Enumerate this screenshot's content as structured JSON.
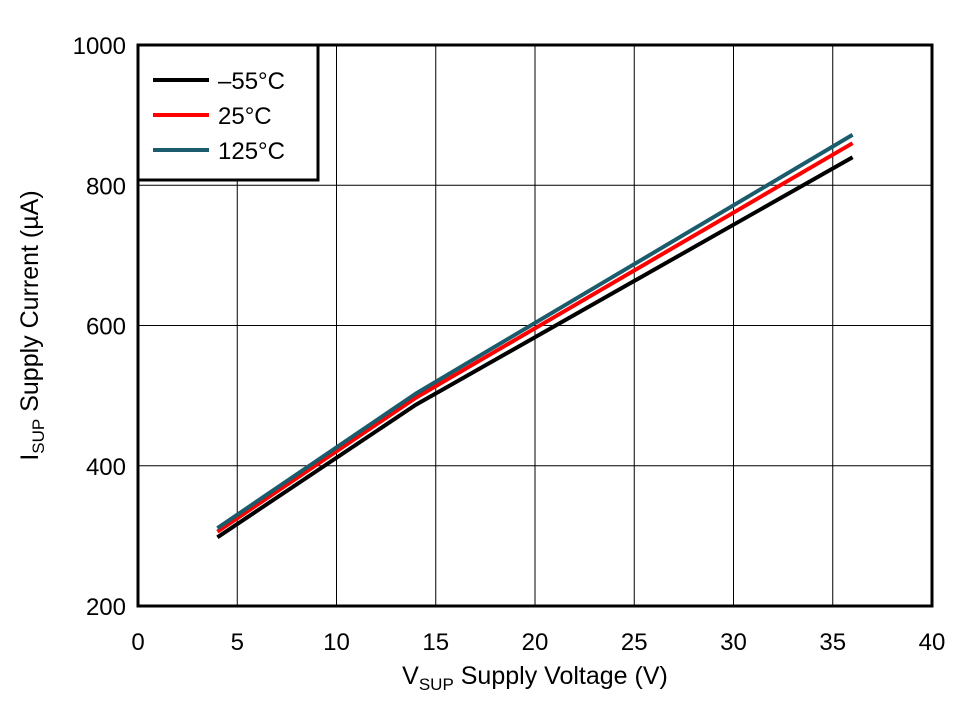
{
  "chart_data": {
    "type": "line",
    "xlabel": {
      "main": "V",
      "sub": "SUP",
      "rest": " Supply Voltage (V)"
    },
    "ylabel": {
      "main": "I",
      "sub": "SUP",
      "rest": " Supply Current (µA)"
    },
    "xlim": [
      0,
      40
    ],
    "ylim": [
      200,
      1000
    ],
    "xticks": [
      0,
      5,
      10,
      15,
      20,
      25,
      30,
      35,
      40
    ],
    "yticks": [
      200,
      400,
      600,
      800,
      1000
    ],
    "grid": true,
    "legend_position": "top-left",
    "series": [
      {
        "name": "–55°C",
        "color": "#000000",
        "x": [
          4,
          14,
          36
        ],
        "y": [
          298,
          487,
          840
        ]
      },
      {
        "name": "25°C",
        "color": "#ff0000",
        "x": [
          4,
          14,
          36
        ],
        "y": [
          306,
          497,
          860
        ]
      },
      {
        "name": "125°C",
        "color": "#1b5c6c",
        "x": [
          4,
          14,
          36
        ],
        "y": [
          311,
          503,
          872
        ]
      }
    ]
  }
}
